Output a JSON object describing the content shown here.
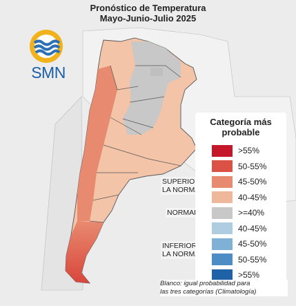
{
  "title": {
    "line1": "Pronóstico de Temperatura",
    "line2": "Mayo-Junio-Julio 2025"
  },
  "logo": {
    "brand": "SMN",
    "icon": "smn-sun-waves-icon"
  },
  "legend": {
    "title_line1": "Categoría más",
    "title_line2": "probable",
    "groups": {
      "superior": [
        "SUPERIOR A",
        "LA NORMAL"
      ],
      "normal": "NORMAL",
      "inferior": [
        "INFERIOR A",
        "LA NORMAL"
      ]
    },
    "items": [
      {
        "label": ">55%",
        "color": "#c4182a"
      },
      {
        "label": "50-55%",
        "color": "#db5146"
      },
      {
        "label": "45-50%",
        "color": "#e88a6f"
      },
      {
        "label": "40-45%",
        "color": "#f0b89b"
      },
      {
        "label": ">=40%",
        "color": "#c8c8c8"
      },
      {
        "label": "40-45%",
        "color": "#afcde0"
      },
      {
        "label": "45-50%",
        "color": "#7fb0d6"
      },
      {
        "label": "50-55%",
        "color": "#4d8cc4"
      },
      {
        "label": ">55%",
        "color": "#1f62a8"
      }
    ]
  },
  "footnote": {
    "line1": "Blanco: igual probabilidad para",
    "line2": "las tres categorías (Climatología)"
  }
}
